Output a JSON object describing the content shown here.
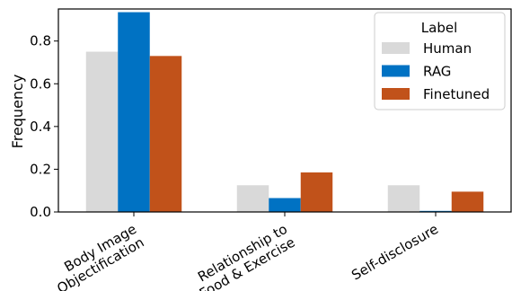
{
  "chart_data": {
    "type": "bar",
    "xlabel": "",
    "ylabel": "Frequency",
    "ylim": [
      0,
      0.95
    ],
    "yticks": [
      "0.0",
      "0.2",
      "0.4",
      "0.6",
      "0.8"
    ],
    "grid": false,
    "categories": [
      [
        "Body Image",
        "Objectification"
      ],
      [
        "Relationship to",
        "Food & Exercise"
      ],
      [
        "Self-disclosure"
      ]
    ],
    "legend": {
      "title": "Label",
      "placement": "top-right"
    },
    "series": [
      {
        "name": "Human",
        "color": "#d9d9d9",
        "values": [
          0.75,
          0.125,
          0.125
        ]
      },
      {
        "name": "RAG",
        "color": "#0072c3",
        "values": [
          0.935,
          0.065,
          0.005
        ]
      },
      {
        "name": "Finetuned",
        "color": "#c1521a",
        "values": [
          0.73,
          0.185,
          0.095
        ]
      }
    ]
  }
}
